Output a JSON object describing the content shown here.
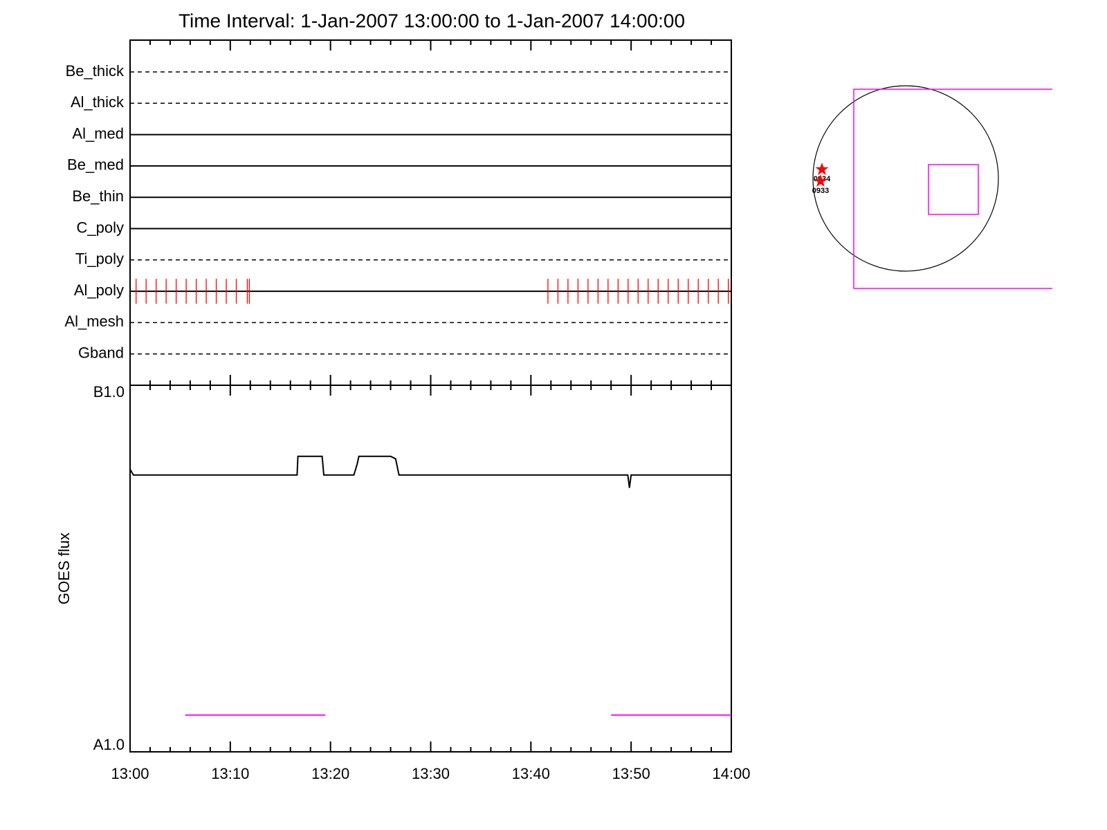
{
  "chart_data": [
    {
      "type": "timeline",
      "title": "Time Interval:  1-Jan-2007 13:00:00 to  1-Jan-2007 14:00:00",
      "channels": [
        {
          "name": "Be_thick",
          "style": "dashed"
        },
        {
          "name": "Al_thick",
          "style": "dashed"
        },
        {
          "name": "Al_med",
          "style": "solid"
        },
        {
          "name": "Be_med",
          "style": "solid"
        },
        {
          "name": "Be_thin",
          "style": "solid"
        },
        {
          "name": "C_poly",
          "style": "solid"
        },
        {
          "name": "Ti_poly",
          "style": "dashed"
        },
        {
          "name": "Al_poly",
          "style": "solid",
          "event_color": "#ff0000",
          "events": [
            "13:00:36",
            "13:01:36",
            "13:02:36",
            "13:03:36",
            "13:04:36",
            "13:05:36",
            "13:06:36",
            "13:07:36",
            "13:08:36",
            "13:09:36",
            "13:10:36",
            "13:11:42",
            "13:11:54",
            "13:41:42",
            "13:42:42",
            "13:43:42",
            "13:44:42",
            "13:45:42",
            "13:46:42",
            "13:47:42",
            "13:48:42",
            "13:49:42",
            "13:50:42",
            "13:51:42",
            "13:52:42",
            "13:53:42",
            "13:54:42",
            "13:55:42",
            "13:56:42",
            "13:57:42",
            "13:58:42",
            "13:59:42"
          ]
        },
        {
          "name": "Al_mesh",
          "style": "dashed"
        },
        {
          "name": "Gband",
          "style": "dashed"
        }
      ],
      "xlim": [
        "13:00:00",
        "14:00:00"
      ]
    },
    {
      "type": "line",
      "ylabel": "GOES flux",
      "log_y": true,
      "ylim": [
        1e-08,
        1e-07
      ],
      "yticks": [
        {
          "value": 1e-08,
          "label": "A1.0"
        },
        {
          "value": 1e-07,
          "label": "B1.0"
        }
      ],
      "xlim": [
        "13:00:00",
        "14:00:00"
      ],
      "xticks": [
        "13:00",
        "13:10",
        "13:20",
        "13:30",
        "13:40",
        "13:50",
        "14:00"
      ],
      "xminorticks": [
        "13:02",
        "13:04",
        "13:06",
        "13:08",
        "13:12",
        "13:14",
        "13:16",
        "13:18",
        "13:22",
        "13:24",
        "13:26",
        "13:28",
        "13:32",
        "13:34",
        "13:36",
        "13:38",
        "13:42",
        "13:44",
        "13:46",
        "13:48",
        "13:52",
        "13:54",
        "13:56",
        "13:58"
      ],
      "series": [
        {
          "color": "#000000",
          "x": [
            "13:00:00",
            "13:00:20",
            "13:16:40",
            "13:16:45",
            "13:19:10",
            "13:19:20",
            "13:22:20",
            "13:22:40",
            "13:22:50",
            "13:26:00",
            "13:26:30",
            "13:26:50",
            "13:49:40",
            "13:49:50",
            "13:50:00",
            "14:00:00"
          ],
          "values": [
            5.9e-08,
            5.69e-08,
            5.69e-08,
            6.4e-08,
            6.4e-08,
            5.69e-08,
            5.69e-08,
            6.1e-08,
            6.4e-08,
            6.4e-08,
            6.3e-08,
            5.69e-08,
            5.69e-08,
            5.25e-08,
            5.69e-08,
            5.69e-08
          ]
        },
        {
          "color": "#ff00ff",
          "x": [
            "13:05:30",
            "13:19:30"
          ],
          "values": [
            1.26e-08,
            1.26e-08
          ]
        },
        {
          "color": "#ff00ff",
          "x": [
            "13:48:00",
            "14:00:00"
          ],
          "values": [
            1.26e-08,
            1.26e-08
          ]
        }
      ]
    }
  ],
  "map": {
    "markers": [
      {
        "label": "0934"
      },
      {
        "label": "0933"
      }
    ]
  }
}
